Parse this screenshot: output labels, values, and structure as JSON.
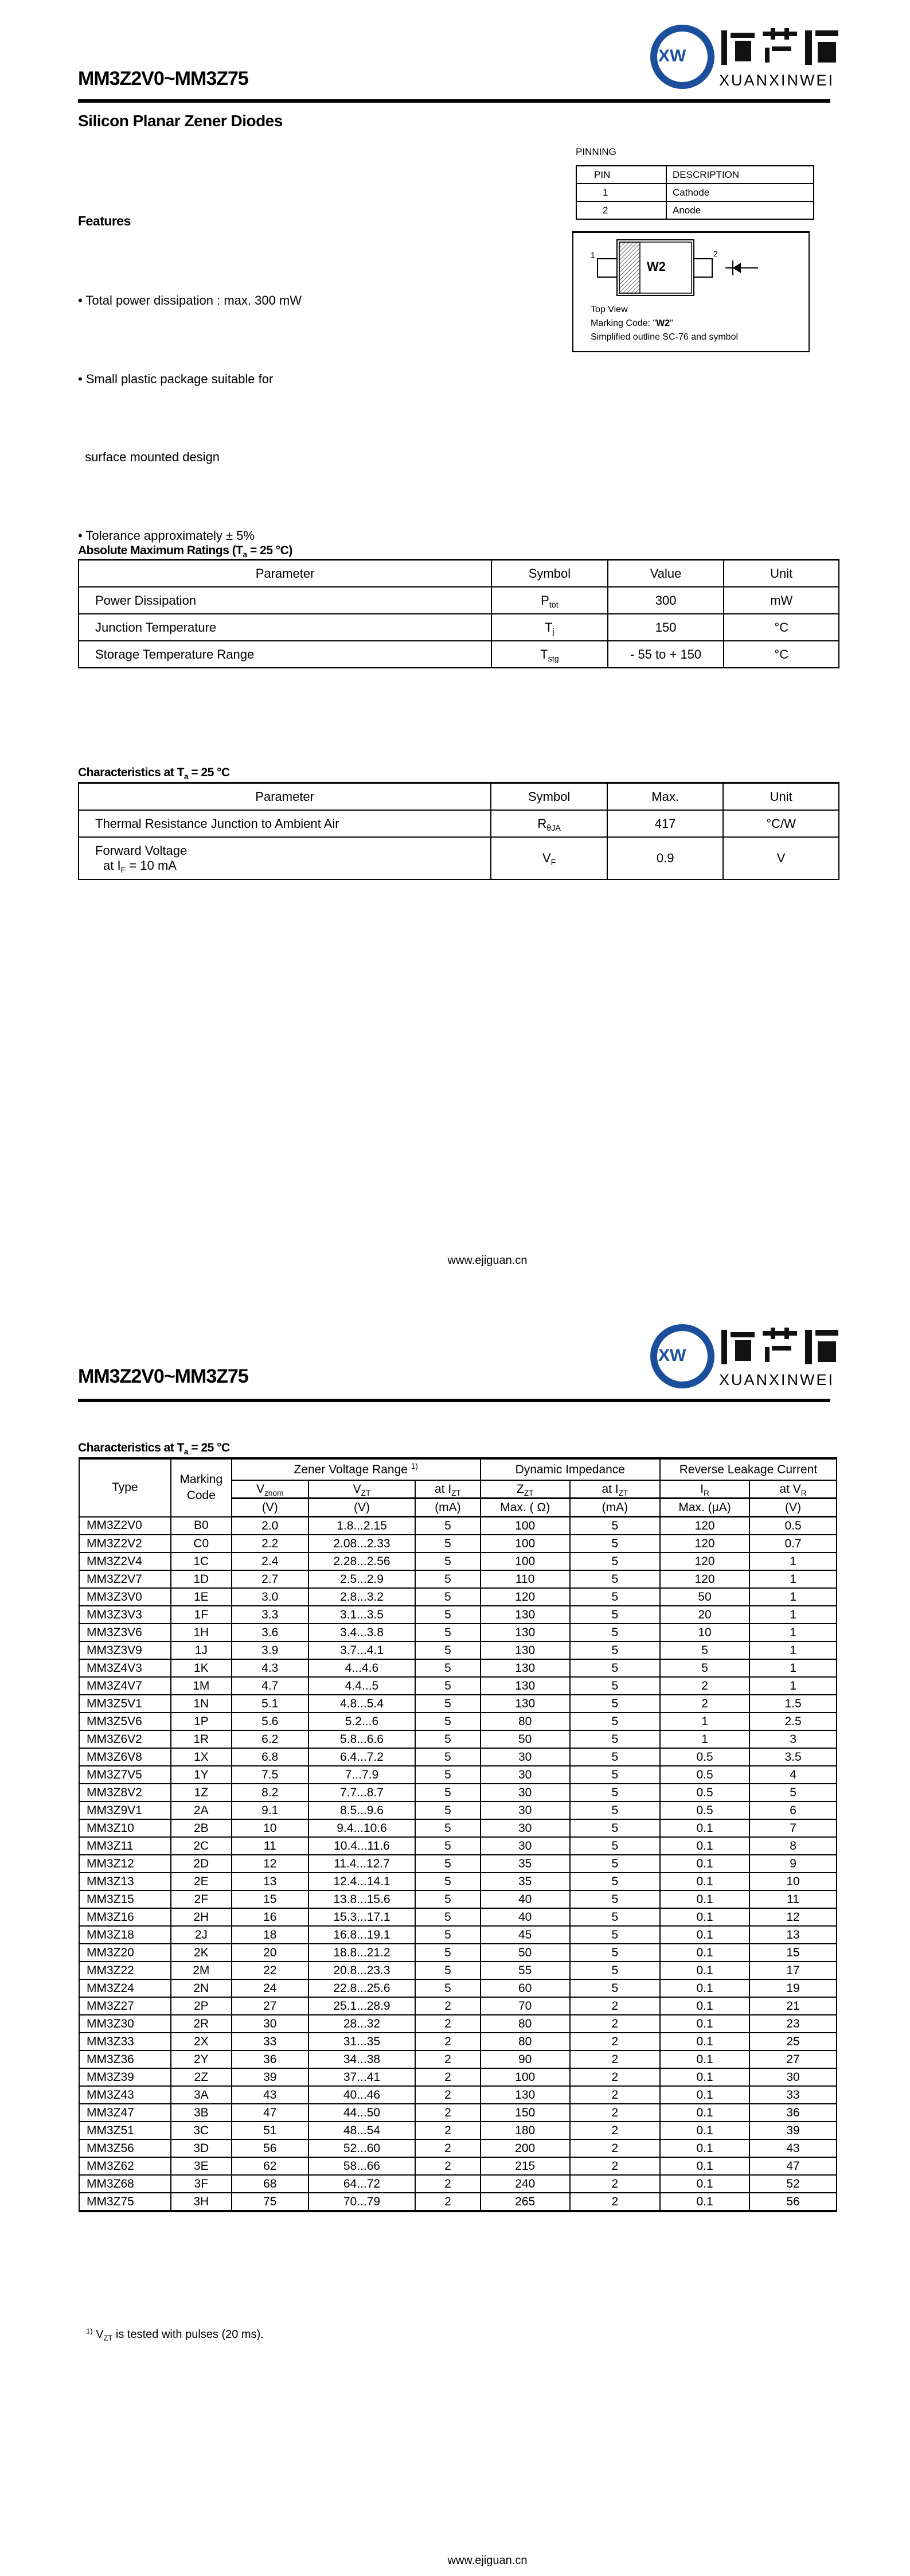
{
  "header": {
    "title": "MM3Z2V0~MM3Z75",
    "logo_text": "XUANXINWEI",
    "logo_cn": "烜芯微",
    "logo_mark": "XW",
    "brand_color": "#1b4f9c"
  },
  "subtitle": "Silicon Planar Zener Diodes",
  "pinning": {
    "label": "PINNING",
    "headers": [
      "PIN",
      "DESCRIPTION"
    ],
    "rows": [
      [
        "1",
        "Cathode"
      ],
      [
        "2",
        "Anode"
      ]
    ]
  },
  "diagram": {
    "pin1": "1",
    "pin2": "2",
    "marking": "W2",
    "caption1": "Top View",
    "caption2_prefix": "Marking Code: \"",
    "caption2_code": "W2",
    "caption2_suffix": "\"",
    "caption3": "Simplified outline SC-76 and symbol"
  },
  "features": {
    "heading": "Features",
    "items": [
      "• Total power dissipation : max. 300 mW",
      "• Small plastic package suitable for",
      "  surface mounted design",
      "• Tolerance approximately ± 5%"
    ]
  },
  "abs_max": {
    "title_pre": "Absolute Maximum Ratings (T",
    "title_sub": "a",
    "title_post": " = 25 °C)",
    "headers": [
      "Parameter",
      "Symbol",
      "Value",
      "Unit"
    ],
    "rows": [
      {
        "param": "Power Dissipation",
        "sym": "P",
        "sym_sub": "tot",
        "value": "300",
        "unit": "mW"
      },
      {
        "param": "Junction Temperature",
        "sym": "T",
        "sym_sub": "j",
        "value": "150",
        "unit": "°C"
      },
      {
        "param": "Storage Temperature Range",
        "sym": "T",
        "sym_sub": "stg",
        "value": "- 55 to + 150",
        "unit": "°C"
      }
    ]
  },
  "char1": {
    "title_pre": "Characteristics at T",
    "title_sub": "a",
    "title_post": " = 25 °C",
    "headers": [
      "Parameter",
      "Symbol",
      "Max.",
      "Unit"
    ],
    "rows": [
      {
        "param": "Thermal Resistance Junction to Ambient Air",
        "sym": "R",
        "sym_sub": "θJA",
        "value": "417",
        "unit": "°C/W"
      },
      {
        "param": "Forward Voltage",
        "param2_pre": "at I",
        "param2_sub": "F",
        "param2_post": " = 10 mA",
        "sym": "V",
        "sym_sub": "F",
        "value": "0.9",
        "unit": "V"
      }
    ]
  },
  "footer": {
    "url": "www.ejiguan.cn"
  },
  "char2": {
    "title_pre": "Characteristics at T",
    "title_sub": "a",
    "title_post": " = 25 °C",
    "groups": {
      "type": "Type",
      "marking": "Marking Code",
      "zener": "Zener Voltage Range",
      "zener_note": "1)",
      "dyn": "Dynamic Impedance",
      "leak": "Reverse Leakage Current"
    },
    "sub_headers": [
      {
        "m": "V",
        "s": "znom"
      },
      {
        "m": "V",
        "s": "ZT"
      },
      {
        "m": "at I",
        "s": "ZT"
      },
      {
        "m": "Z",
        "s": "ZT"
      },
      {
        "m": "at I",
        "s": "ZT"
      },
      {
        "m": "I",
        "s": "R"
      },
      {
        "m": "at V",
        "s": "R"
      }
    ],
    "units": [
      "(V)",
      "(V)",
      "(mA)",
      "Max. ( Ω)",
      "(mA)",
      "Max. (µA)",
      "(V)"
    ],
    "rows": [
      [
        "MM3Z2V0",
        "B0",
        "2.0",
        "1.8...2.15",
        "5",
        "100",
        "5",
        "120",
        "0.5"
      ],
      [
        "MM3Z2V2",
        "C0",
        "2.2",
        "2.08...2.33",
        "5",
        "100",
        "5",
        "120",
        "0.7"
      ],
      [
        "MM3Z2V4",
        "1C",
        "2.4",
        "2.28...2.56",
        "5",
        "100",
        "5",
        "120",
        "1"
      ],
      [
        "MM3Z2V7",
        "1D",
        "2.7",
        "2.5...2.9",
        "5",
        "110",
        "5",
        "120",
        "1"
      ],
      [
        "MM3Z3V0",
        "1E",
        "3.0",
        "2.8...3.2",
        "5",
        "120",
        "5",
        "50",
        "1"
      ],
      [
        "MM3Z3V3",
        "1F",
        "3.3",
        "3.1...3.5",
        "5",
        "130",
        "5",
        "20",
        "1"
      ],
      [
        "MM3Z3V6",
        "1H",
        "3.6",
        "3.4...3.8",
        "5",
        "130",
        "5",
        "10",
        "1"
      ],
      [
        "MM3Z3V9",
        "1J",
        "3.9",
        "3.7...4.1",
        "5",
        "130",
        "5",
        "5",
        "1"
      ],
      [
        "MM3Z4V3",
        "1K",
        "4.3",
        "4...4.6",
        "5",
        "130",
        "5",
        "5",
        "1"
      ],
      [
        "MM3Z4V7",
        "1M",
        "4.7",
        "4.4...5",
        "5",
        "130",
        "5",
        "2",
        "1"
      ],
      [
        "MM3Z5V1",
        "1N",
        "5.1",
        "4.8...5.4",
        "5",
        "130",
        "5",
        "2",
        "1.5"
      ],
      [
        "MM3Z5V6",
        "1P",
        "5.6",
        "5.2...6",
        "5",
        "80",
        "5",
        "1",
        "2.5"
      ],
      [
        "MM3Z6V2",
        "1R",
        "6.2",
        "5.8...6.6",
        "5",
        "50",
        "5",
        "1",
        "3"
      ],
      [
        "MM3Z6V8",
        "1X",
        "6.8",
        "6.4...7.2",
        "5",
        "30",
        "5",
        "0.5",
        "3.5"
      ],
      [
        "MM3Z7V5",
        "1Y",
        "7.5",
        "7...7.9",
        "5",
        "30",
        "5",
        "0.5",
        "4"
      ],
      [
        "MM3Z8V2",
        "1Z",
        "8.2",
        "7.7...8.7",
        "5",
        "30",
        "5",
        "0.5",
        "5"
      ],
      [
        "MM3Z9V1",
        "2A",
        "9.1",
        "8.5...9.6",
        "5",
        "30",
        "5",
        "0.5",
        "6"
      ],
      [
        "MM3Z10",
        "2B",
        "10",
        "9.4...10.6",
        "5",
        "30",
        "5",
        "0.1",
        "7"
      ],
      [
        "MM3Z11",
        "2C",
        "11",
        "10.4...11.6",
        "5",
        "30",
        "5",
        "0.1",
        "8"
      ],
      [
        "MM3Z12",
        "2D",
        "12",
        "11.4...12.7",
        "5",
        "35",
        "5",
        "0.1",
        "9"
      ],
      [
        "MM3Z13",
        "2E",
        "13",
        "12.4...14.1",
        "5",
        "35",
        "5",
        "0.1",
        "10"
      ],
      [
        "MM3Z15",
        "2F",
        "15",
        "13.8...15.6",
        "5",
        "40",
        "5",
        "0.1",
        "11"
      ],
      [
        "MM3Z16",
        "2H",
        "16",
        "15.3...17.1",
        "5",
        "40",
        "5",
        "0.1",
        "12"
      ],
      [
        "MM3Z18",
        "2J",
        "18",
        "16.8...19.1",
        "5",
        "45",
        "5",
        "0.1",
        "13"
      ],
      [
        "MM3Z20",
        "2K",
        "20",
        "18.8...21.2",
        "5",
        "50",
        "5",
        "0.1",
        "15"
      ],
      [
        "MM3Z22",
        "2M",
        "22",
        "20.8...23.3",
        "5",
        "55",
        "5",
        "0.1",
        "17"
      ],
      [
        "MM3Z24",
        "2N",
        "24",
        "22.8...25.6",
        "5",
        "60",
        "5",
        "0.1",
        "19"
      ],
      [
        "MM3Z27",
        "2P",
        "27",
        "25.1...28.9",
        "2",
        "70",
        "2",
        "0.1",
        "21"
      ],
      [
        "MM3Z30",
        "2R",
        "30",
        "28...32",
        "2",
        "80",
        "2",
        "0.1",
        "23"
      ],
      [
        "MM3Z33",
        "2X",
        "33",
        "31...35",
        "2",
        "80",
        "2",
        "0.1",
        "25"
      ],
      [
        "MM3Z36",
        "2Y",
        "36",
        "34...38",
        "2",
        "90",
        "2",
        "0.1",
        "27"
      ],
      [
        "MM3Z39",
        "2Z",
        "39",
        "37...41",
        "2",
        "100",
        "2",
        "0.1",
        "30"
      ],
      [
        "MM3Z43",
        "3A",
        "43",
        "40...46",
        "2",
        "130",
        "2",
        "0.1",
        "33"
      ],
      [
        "MM3Z47",
        "3B",
        "47",
        "44...50",
        "2",
        "150",
        "2",
        "0.1",
        "36"
      ],
      [
        "MM3Z51",
        "3C",
        "51",
        "48...54",
        "2",
        "180",
        "2",
        "0.1",
        "39"
      ],
      [
        "MM3Z56",
        "3D",
        "56",
        "52...60",
        "2",
        "200",
        "2",
        "0.1",
        "43"
      ],
      [
        "MM3Z62",
        "3E",
        "62",
        "58...66",
        "2",
        "215",
        "2",
        "0.1",
        "47"
      ],
      [
        "MM3Z68",
        "3F",
        "68",
        "64...72",
        "2",
        "240",
        "2",
        "0.1",
        "52"
      ],
      [
        "MM3Z75",
        "3H",
        "75",
        "70...79",
        "2",
        "265",
        "2",
        "0.1",
        "56"
      ]
    ],
    "footnote_mark": "1)",
    "footnote_m": "V",
    "footnote_s": "ZT",
    "footnote_text": " is tested with pulses (20 ms)."
  }
}
